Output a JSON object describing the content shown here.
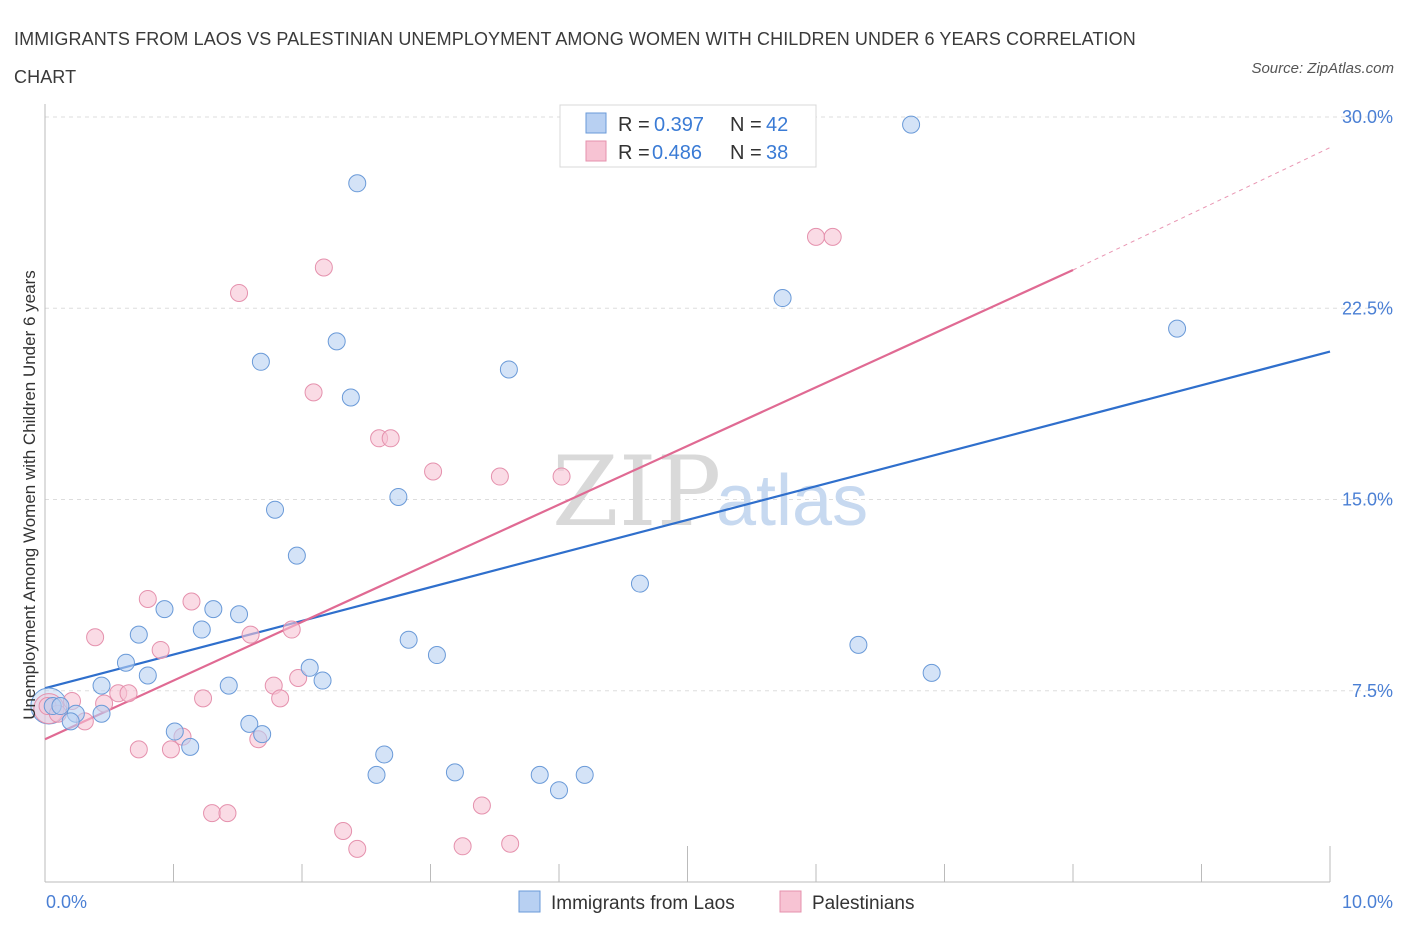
{
  "header": {
    "title": "IMMIGRANTS FROM LAOS VS PALESTINIAN UNEMPLOYMENT AMONG WOMEN WITH CHILDREN UNDER 6 YEARS CORRELATION CHART",
    "source": "Source: ZipAtlas.com"
  },
  "watermark": {
    "zip": "ZIP",
    "atlas": "atlas"
  },
  "colors": {
    "blue_fill": "#b8d0f2",
    "blue_stroke": "#6a9ad8",
    "blue_line": "#2f6fcc",
    "pink_fill": "#f7c3d3",
    "pink_stroke": "#e591ad",
    "pink_line": "#e06a93",
    "tick_label": "#4a7fd4",
    "grid": "#dddddd"
  },
  "legend": {
    "r_label": "R =",
    "n_label": "N =",
    "rows": [
      {
        "r": "0.397",
        "n": "42"
      },
      {
        "r": "0.486",
        "n": "38"
      }
    ]
  },
  "chart_data": {
    "type": "scatter",
    "title": "IMMIGRANTS FROM LAOS VS PALESTINIAN UNEMPLOYMENT AMONG WOMEN WITH CHILDREN UNDER 6 YEARS CORRELATION CHART",
    "xlabel": "",
    "ylabel": "Unemployment Among Women with Children Under 6 years",
    "xlim": [
      0,
      10
    ],
    "ylim": [
      0,
      30
    ],
    "x_tick_labels": [
      "0.0%",
      "10.0%"
    ],
    "y_tick_labels": [
      "7.5%",
      "15.0%",
      "22.5%",
      "30.0%"
    ],
    "y_ticks": [
      7.5,
      15,
      22.5,
      30
    ],
    "grid": "horizontal dashed",
    "legend_position": "top-center",
    "series": [
      {
        "name": "Immigrants from Laos",
        "r": 0.397,
        "n": 42,
        "trend": {
          "x": [
            0,
            10
          ],
          "y": [
            7.6,
            20.8
          ]
        },
        "points": [
          [
            0.06,
            6.9
          ],
          [
            0.12,
            6.9
          ],
          [
            0.24,
            6.6
          ],
          [
            0.2,
            6.3
          ],
          [
            0.44,
            6.6
          ],
          [
            0.44,
            7.7
          ],
          [
            0.63,
            8.6
          ],
          [
            0.73,
            9.7
          ],
          [
            0.8,
            8.1
          ],
          [
            0.93,
            10.7
          ],
          [
            1.01,
            5.9
          ],
          [
            1.13,
            5.3
          ],
          [
            1.22,
            9.9
          ],
          [
            1.31,
            10.7
          ],
          [
            1.43,
            7.7
          ],
          [
            1.51,
            10.5
          ],
          [
            1.59,
            6.2
          ],
          [
            1.69,
            5.8
          ],
          [
            1.68,
            20.4
          ],
          [
            1.79,
            14.6
          ],
          [
            1.96,
            12.8
          ],
          [
            2.06,
            8.4
          ],
          [
            2.16,
            7.9
          ],
          [
            2.27,
            21.2
          ],
          [
            2.38,
            19.0
          ],
          [
            2.43,
            27.4
          ],
          [
            2.58,
            4.2
          ],
          [
            2.64,
            5.0
          ],
          [
            2.75,
            15.1
          ],
          [
            2.83,
            9.5
          ],
          [
            3.05,
            8.9
          ],
          [
            3.19,
            4.3
          ],
          [
            3.61,
            20.1
          ],
          [
            3.85,
            4.2
          ],
          [
            4.0,
            3.6
          ],
          [
            4.2,
            4.2
          ],
          [
            4.63,
            11.7
          ],
          [
            5.74,
            22.9
          ],
          [
            6.33,
            9.3
          ],
          [
            6.9,
            8.2
          ],
          [
            6.74,
            29.7
          ],
          [
            8.81,
            21.7
          ]
        ]
      },
      {
        "name": "Palestinians",
        "r": 0.486,
        "n": 38,
        "trend": {
          "x": [
            0,
            8
          ],
          "y": [
            5.6,
            24.0
          ],
          "dashed_to": {
            "x": 10,
            "y": 28.8
          }
        },
        "points": [
          [
            0.02,
            6.9
          ],
          [
            0.1,
            6.6
          ],
          [
            0.21,
            7.1
          ],
          [
            0.31,
            6.3
          ],
          [
            0.39,
            9.6
          ],
          [
            0.46,
            7.0
          ],
          [
            0.57,
            7.4
          ],
          [
            0.65,
            7.4
          ],
          [
            0.73,
            5.2
          ],
          [
            0.8,
            11.1
          ],
          [
            0.9,
            9.1
          ],
          [
            0.98,
            5.2
          ],
          [
            1.07,
            5.7
          ],
          [
            1.14,
            11.0
          ],
          [
            1.23,
            7.2
          ],
          [
            1.3,
            2.7
          ],
          [
            1.42,
            2.7
          ],
          [
            1.51,
            23.1
          ],
          [
            1.6,
            9.7
          ],
          [
            1.66,
            5.6
          ],
          [
            1.78,
            7.7
          ],
          [
            1.83,
            7.2
          ],
          [
            1.92,
            9.9
          ],
          [
            1.97,
            8.0
          ],
          [
            2.09,
            19.2
          ],
          [
            2.17,
            24.1
          ],
          [
            2.32,
            2.0
          ],
          [
            2.43,
            1.3
          ],
          [
            2.6,
            17.4
          ],
          [
            2.69,
            17.4
          ],
          [
            3.02,
            16.1
          ],
          [
            3.25,
            1.4
          ],
          [
            3.4,
            3.0
          ],
          [
            3.54,
            15.9
          ],
          [
            3.62,
            1.5
          ],
          [
            4.02,
            15.9
          ],
          [
            6.0,
            25.3
          ],
          [
            6.13,
            25.3
          ]
        ]
      }
    ]
  }
}
